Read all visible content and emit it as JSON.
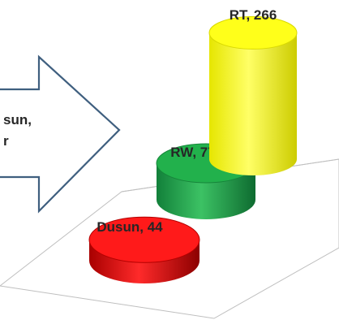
{
  "chart_data": {
    "type": "bar",
    "style": "3d-cylinder",
    "categories": [
      "Dusun",
      "RW",
      "RT"
    ],
    "values": [
      44,
      77,
      266
    ],
    "data_labels": [
      "Dusun, 44",
      "RW, 77",
      "RT, 266"
    ],
    "colors": [
      "#e60000",
      "#1fa84a",
      "#ffff00"
    ],
    "title": "",
    "xlabel": "",
    "ylabel": "",
    "legend": "none",
    "grid": false
  },
  "callout": {
    "line1": "sun,",
    "line2": "r",
    "fill": "#ffffff",
    "stroke": "#3f5f7f"
  }
}
